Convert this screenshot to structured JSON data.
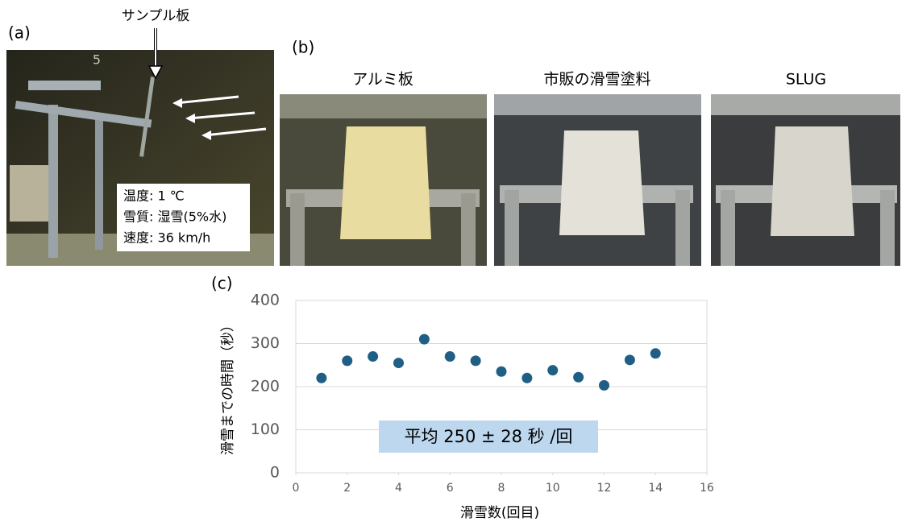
{
  "panels": {
    "a": {
      "label": "(a)",
      "pointer": "サンプル板",
      "marker": "5",
      "conditions": [
        "温度: 1 ℃",
        "雪質: 湿雪(5%水)",
        "速度: 36 km/h"
      ]
    },
    "b": {
      "label": "(b)",
      "titles": [
        "アルミ板",
        "市販の滑雪塗料",
        "SLUG"
      ]
    },
    "c": {
      "label": "(c)"
    }
  },
  "chart_data": {
    "type": "scatter",
    "x": [
      1,
      2,
      3,
      4,
      5,
      6,
      7,
      8,
      9,
      10,
      11,
      12,
      13,
      14
    ],
    "values": [
      220,
      260,
      270,
      255,
      310,
      270,
      260,
      235,
      220,
      238,
      222,
      203,
      262,
      277
    ],
    "color": "#1f5f85",
    "xlim": [
      0,
      16
    ],
    "xticks": [
      0,
      2,
      4,
      6,
      8,
      10,
      12,
      14,
      16
    ],
    "ylim": [
      0,
      400
    ],
    "yticks": [
      0,
      100,
      200,
      300,
      400
    ],
    "grid": true,
    "xlabel": "滑雪数(回目)",
    "ylabel": "滑雪までの時間（秒）",
    "annotation": "平均 250 ± 28 秒 /回"
  }
}
